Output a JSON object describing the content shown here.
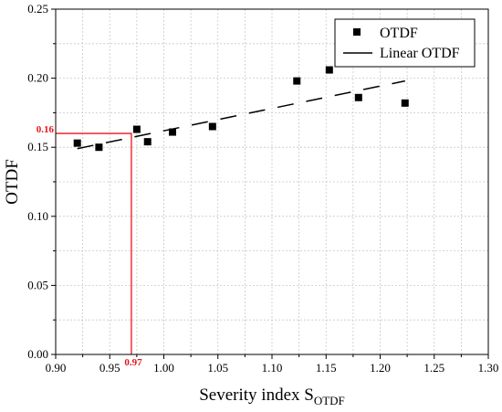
{
  "chart_data": {
    "type": "scatter",
    "xlabel_main": "Severity index S",
    "xlabel_sub": "OTDF",
    "ylabel": "OTDF",
    "xlim": [
      0.9,
      1.3
    ],
    "ylim": [
      0.0,
      0.25
    ],
    "xticks": [
      "0.90",
      "0.95",
      "1.00",
      "1.05",
      "1.10",
      "1.15",
      "1.20",
      "1.25",
      "1.30"
    ],
    "yticks": [
      "0.00",
      "0.05",
      "0.10",
      "0.15",
      "0.20",
      "0.25"
    ],
    "grid": true,
    "legend_position": "top-right",
    "series": [
      {
        "name": "OTDF",
        "kind": "markers",
        "x": [
          0.92,
          0.94,
          0.975,
          0.985,
          1.008,
          1.045,
          1.123,
          1.153,
          1.18,
          1.223
        ],
        "y": [
          0.153,
          0.15,
          0.163,
          0.154,
          0.161,
          0.165,
          0.198,
          0.206,
          0.186,
          0.182
        ]
      },
      {
        "name": "Linear OTDF",
        "kind": "dashed-line",
        "x": [
          0.92,
          1.223
        ],
        "y": [
          0.149,
          0.198
        ]
      }
    ],
    "annotation": {
      "x": 0.97,
      "y": 0.16,
      "x_label": "0.97",
      "y_label": "0.16",
      "color": "#e8141b"
    }
  }
}
